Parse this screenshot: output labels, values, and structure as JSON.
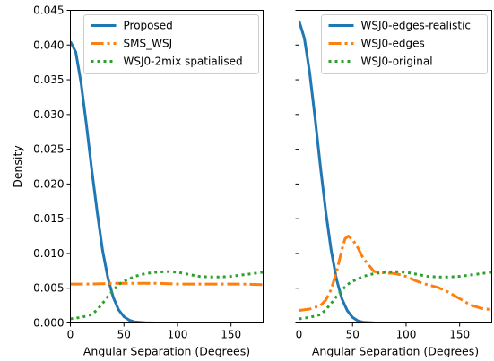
{
  "chart_data": [
    {
      "type": "line",
      "xlabel": "Angular Separation (Degrees)",
      "ylabel": "Density",
      "xlim": [
        0,
        180
      ],
      "ylim": [
        0,
        0.045
      ],
      "xticks": [
        0,
        50,
        100,
        150
      ],
      "xtick_labels": [
        "0",
        "50",
        "100",
        "150"
      ],
      "yticks": [
        0.0,
        0.005,
        0.01,
        0.015,
        0.02,
        0.025,
        0.03,
        0.035,
        0.04,
        0.045
      ],
      "ytick_labels": [
        "0.000",
        "0.005",
        "0.010",
        "0.015",
        "0.020",
        "0.025",
        "0.030",
        "0.035",
        "0.040",
        "0.045"
      ],
      "grid": false,
      "legend_position": "top-right",
      "series": [
        {
          "name": "Proposed",
          "color": "#1f77b4",
          "dash": "solid",
          "x": [
            0,
            5,
            10,
            15,
            20,
            25,
            30,
            35,
            40,
            45,
            50,
            55,
            60,
            70,
            80,
            100,
            130,
            180
          ],
          "y": [
            0.0405,
            0.039,
            0.0345,
            0.0285,
            0.022,
            0.016,
            0.0105,
            0.0065,
            0.0037,
            0.0019,
            0.0009,
            0.0004,
            0.00015,
            3e-05,
            0.0,
            0.0,
            0.0,
            0.0
          ]
        },
        {
          "name": "SMS_WSJ",
          "color": "#ff7f0e",
          "dash": "dashdot",
          "x": [
            0,
            20,
            40,
            60,
            80,
            100,
            120,
            140,
            160,
            180
          ],
          "y": [
            0.0056,
            0.0056,
            0.0057,
            0.0057,
            0.0057,
            0.0056,
            0.0056,
            0.0056,
            0.0056,
            0.0055
          ]
        },
        {
          "name": "WSJ0-2mix spatialised",
          "color": "#2ca02c",
          "dash": "dotted",
          "x": [
            0,
            10,
            20,
            25,
            30,
            35,
            40,
            45,
            50,
            60,
            70,
            80,
            90,
            100,
            110,
            120,
            130,
            140,
            150,
            160,
            170,
            180
          ],
          "y": [
            0.0006,
            0.0008,
            0.0012,
            0.0019,
            0.0028,
            0.0038,
            0.0047,
            0.0055,
            0.006,
            0.0067,
            0.0071,
            0.0073,
            0.0074,
            0.0073,
            0.007,
            0.0067,
            0.0066,
            0.0066,
            0.0067,
            0.0069,
            0.0071,
            0.0073
          ]
        }
      ]
    },
    {
      "type": "line",
      "xlabel": "Angular Separation (Degrees)",
      "ylabel": "",
      "xlim": [
        0,
        180
      ],
      "ylim": [
        0,
        0.045
      ],
      "xticks": [
        0,
        50,
        100,
        150
      ],
      "xtick_labels": [
        "0",
        "50",
        "100",
        "150"
      ],
      "grid": false,
      "legend_position": "top-right",
      "series": [
        {
          "name": "WSJ0-edges-realistic",
          "color": "#1f77b4",
          "dash": "solid",
          "x": [
            0,
            5,
            10,
            15,
            20,
            25,
            30,
            35,
            40,
            45,
            50,
            55,
            60,
            70,
            80,
            100,
            130,
            180
          ],
          "y": [
            0.0435,
            0.041,
            0.036,
            0.0295,
            0.0225,
            0.016,
            0.0105,
            0.0063,
            0.0035,
            0.0018,
            0.0008,
            0.0003,
            0.0001,
            2e-05,
            0.0,
            0.0,
            0.0,
            0.0
          ]
        },
        {
          "name": "WSJ0-edges",
          "color": "#ff7f0e",
          "dash": "dashdot",
          "x": [
            0,
            10,
            20,
            25,
            30,
            35,
            40,
            43,
            46,
            50,
            55,
            60,
            70,
            80,
            90,
            100,
            110,
            120,
            130,
            140,
            150,
            160,
            170,
            180
          ],
          "y": [
            0.0018,
            0.002,
            0.0025,
            0.0033,
            0.0048,
            0.0073,
            0.0105,
            0.0121,
            0.0125,
            0.012,
            0.0108,
            0.0093,
            0.0074,
            0.0072,
            0.0071,
            0.0067,
            0.006,
            0.0055,
            0.0051,
            0.0044,
            0.0035,
            0.0026,
            0.0021,
            0.0019
          ]
        },
        {
          "name": "WSJ0-original",
          "color": "#2ca02c",
          "dash": "dotted",
          "x": [
            0,
            10,
            20,
            25,
            30,
            35,
            40,
            45,
            50,
            60,
            70,
            80,
            90,
            100,
            110,
            120,
            130,
            140,
            150,
            160,
            170,
            180
          ],
          "y": [
            0.0006,
            0.0008,
            0.0012,
            0.0019,
            0.0028,
            0.0038,
            0.0047,
            0.0055,
            0.006,
            0.0067,
            0.0071,
            0.0073,
            0.0074,
            0.0073,
            0.007,
            0.0067,
            0.0066,
            0.0066,
            0.0067,
            0.0069,
            0.0071,
            0.0073
          ]
        }
      ]
    }
  ]
}
